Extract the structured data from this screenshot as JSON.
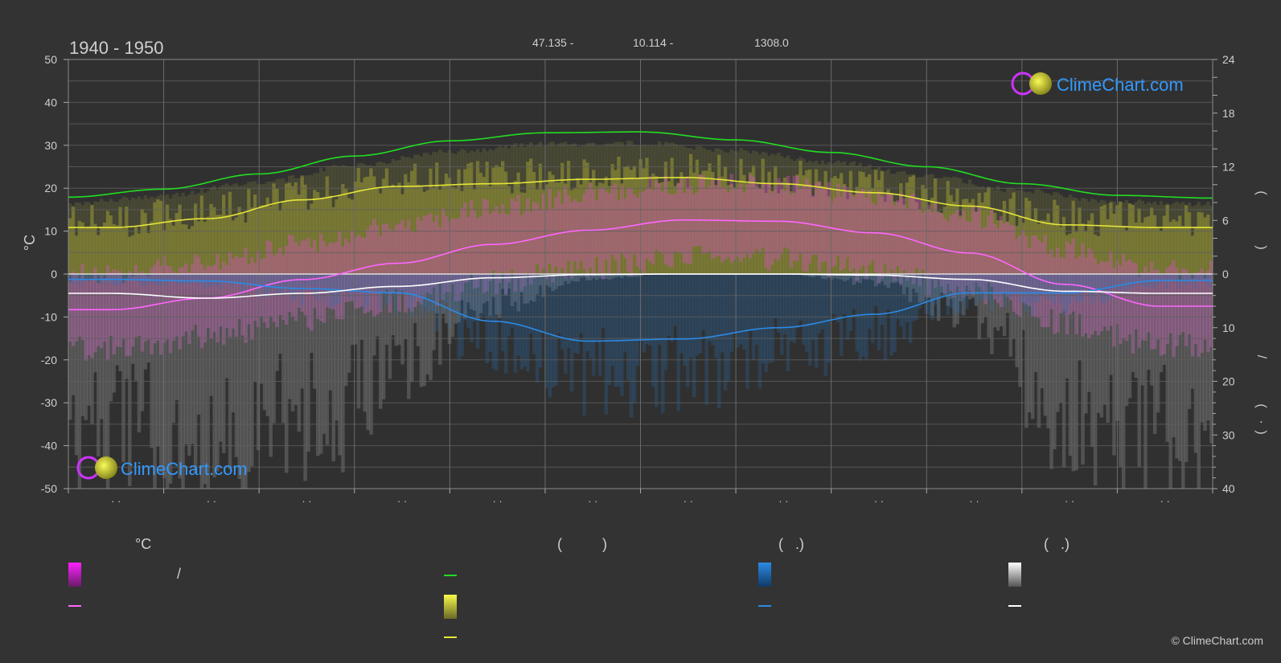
{
  "colors": {
    "background": "#333333",
    "plot_background": "#303030",
    "grid": "#5a5a5a",
    "sunshine_line": "#e5e53a",
    "daylight_line": "#22dd22",
    "temp_line": "#ff66ff",
    "precip_line": "#2b8ae6",
    "snow_line": "#ffffff",
    "brand": "#3399ff"
  },
  "header": {
    "period": "1940 - 1950",
    "latitude": "47.135 -",
    "longitude": "10.114 -",
    "elevation": "1308.0"
  },
  "logo": {
    "text": "ClimeChart.com"
  },
  "copyright": "© ClimeChart.com",
  "chart_data": {
    "type": "line",
    "y_left": {
      "label": "°C",
      "ticks": [
        50,
        40,
        30,
        20,
        10,
        0,
        -10,
        -20,
        -30,
        -40,
        -50
      ],
      "range": [
        -50,
        50
      ]
    },
    "y_right_top": {
      "ticks": [
        24,
        18,
        12,
        6,
        0
      ],
      "range": [
        0,
        24
      ]
    },
    "y_right_bottom": {
      "ticks": [
        0,
        10,
        20,
        30,
        40
      ],
      "range": [
        0,
        40
      ]
    },
    "x_month_count": 12,
    "x_tick_labels": [
      "· ·",
      "· ·",
      "· ·",
      "· ·",
      "· ·",
      "· ·",
      "· ·",
      "· ·",
      "· ·",
      "· ·",
      "· ·",
      "· ·"
    ],
    "right_axis_label_fragments": [
      "(",
      ")",
      "/",
      "(",
      "·",
      ")"
    ],
    "series": [
      {
        "key": "daylight",
        "color": "#22dd22",
        "x": [
          0,
          1,
          2,
          3,
          4,
          5,
          6,
          7,
          8,
          9,
          10,
          11,
          12
        ],
        "values": [
          8.6,
          9.5,
          11.2,
          13.2,
          14.9,
          15.8,
          15.9,
          15.0,
          13.6,
          12.0,
          10.1,
          8.8,
          8.5
        ]
      },
      {
        "key": "sunshine",
        "color": "#e5e53a",
        "x": [
          0.45,
          1.45,
          2.45,
          3.45,
          4.45,
          5.45,
          6.45,
          7.45,
          8.45,
          9.45,
          10.45,
          11.45
        ],
        "values": [
          5.2,
          6.2,
          8.3,
          9.8,
          10.1,
          10.6,
          10.8,
          10.1,
          9.1,
          7.6,
          5.5,
          5.2
        ]
      },
      {
        "key": "temperature",
        "color": "#ff66ff",
        "x": [
          0.45,
          1.45,
          2.45,
          3.45,
          4.45,
          5.45,
          6.45,
          7.45,
          8.45,
          9.45,
          10.45,
          11.45
        ],
        "values": [
          -8.3,
          -5.6,
          -1.3,
          2.5,
          6.9,
          10.2,
          12.6,
          12.3,
          9.6,
          4.9,
          -2.4,
          -7.5
        ]
      },
      {
        "key": "precipitation",
        "color": "#2b8ae6",
        "x": [
          0.45,
          1.45,
          2.45,
          3.45,
          4.45,
          5.45,
          6.45,
          7.45,
          8.45,
          9.45,
          10.45,
          11.45
        ],
        "values": [
          1.0,
          1.3,
          2.7,
          3.5,
          8.8,
          12.5,
          12.1,
          10.0,
          7.5,
          3.5,
          3.5,
          1.2
        ]
      },
      {
        "key": "snowfall",
        "color": "#ffffff",
        "x": [
          0.45,
          1.45,
          2.45,
          3.45,
          4.45,
          5.45,
          6.45,
          7.45,
          8.45,
          9.45,
          10.45,
          11.45
        ],
        "values": [
          3.6,
          4.5,
          3.6,
          2.3,
          0.7,
          0.1,
          0.0,
          0.0,
          0.2,
          1.0,
          3.2,
          3.6
        ]
      }
    ]
  },
  "legend": {
    "col1_header": "°C",
    "col2_header": "(          )",
    "col3_header": "(   .)",
    "col4_header": "(   .)",
    "col1_row1": "/"
  }
}
